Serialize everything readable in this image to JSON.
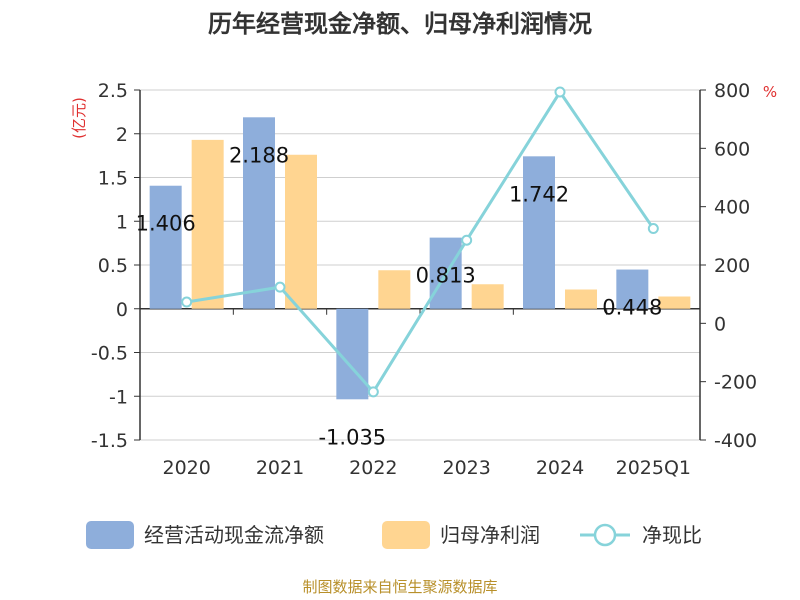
{
  "chart_data": {
    "type": "bar",
    "title": "历年经营现金净额、归母净利润情况",
    "categories": [
      "2020",
      "2021",
      "2022",
      "2023",
      "2024",
      "2025Q1"
    ],
    "series": [
      {
        "name": "经营活动现金流净额",
        "type": "bar",
        "axis": "left",
        "values": [
          1.406,
          2.188,
          -1.035,
          0.813,
          1.742,
          0.448
        ],
        "color": "#8eaedb"
      },
      {
        "name": "归母净利润",
        "type": "bar",
        "axis": "left",
        "values": [
          1.93,
          1.76,
          0.44,
          0.28,
          0.22,
          0.14
        ],
        "color": "#ffd591"
      },
      {
        "name": "净现比",
        "type": "line",
        "axis": "right",
        "values": [
          73,
          124,
          -235,
          285,
          793,
          325
        ],
        "color": "#86d3da"
      }
    ],
    "data_labels": [
      "1.406",
      "2.188",
      "-1.035",
      "0.813",
      "1.742",
      "0.448"
    ],
    "y_left": {
      "unit": "(亿元)",
      "min": -1.5,
      "max": 2.5,
      "ticks": [
        "2.5",
        "2",
        "1.5",
        "1",
        "0.5",
        "0",
        "-0.5",
        "-1",
        "-1.5"
      ]
    },
    "y_right": {
      "unit": "%",
      "min": -400,
      "max": 800,
      "ticks": [
        "800",
        "600",
        "400",
        "200",
        "0",
        "-200",
        "-400"
      ]
    },
    "grid": true,
    "legend_position": "bottom"
  },
  "source": "制图数据来自恒生聚源数据库"
}
